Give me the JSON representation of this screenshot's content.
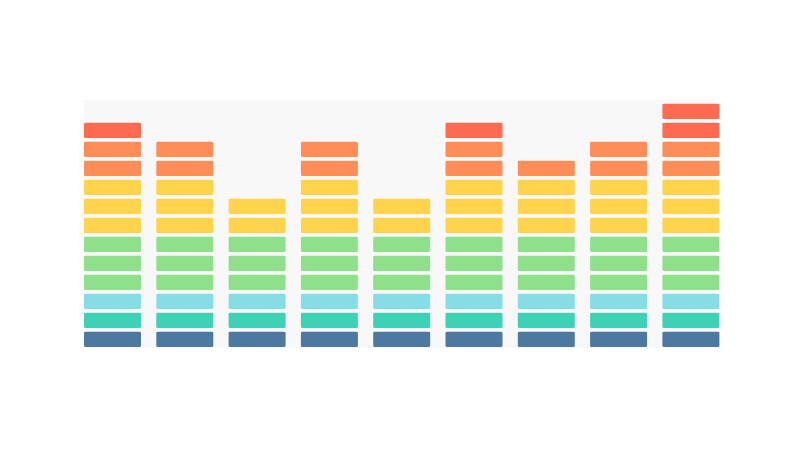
{
  "chart_data": {
    "type": "equalizer",
    "values": [
      12,
      11,
      8,
      11,
      8,
      12,
      10,
      11,
      13
    ],
    "ylim": [
      0,
      13
    ],
    "segment_colors": [
      "#4d78a0",
      "#3ed1b6",
      "#86dde6",
      "#8ee08a",
      "#8ee08a",
      "#8ee08a",
      "#ffd44c",
      "#ffd44c",
      "#ffd44c",
      "#ff8d57",
      "#ff8d57",
      "#ff6b50",
      "#ff6b50"
    ]
  }
}
